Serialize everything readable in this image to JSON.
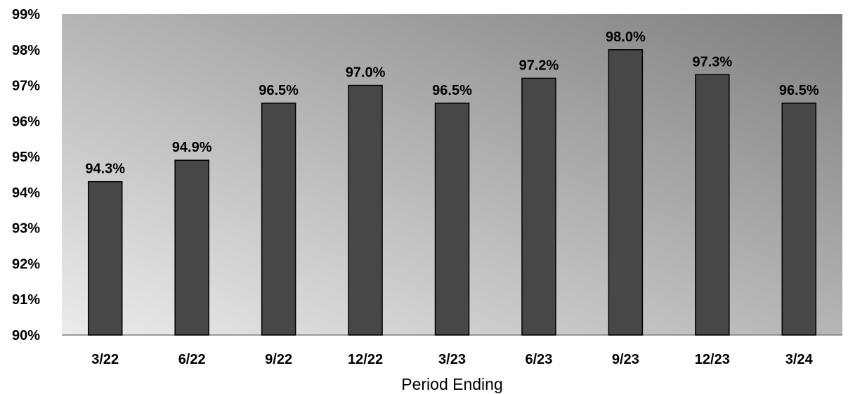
{
  "chart_data": {
    "type": "bar",
    "title": "",
    "xlabel": "Period Ending",
    "ylabel": "",
    "categories": [
      "3/22",
      "6/22",
      "9/22",
      "12/22",
      "3/23",
      "6/23",
      "9/23",
      "12/23",
      "3/24"
    ],
    "values": [
      94.3,
      94.9,
      96.5,
      97.0,
      96.5,
      97.2,
      98.0,
      97.3,
      96.5
    ],
    "data_labels": [
      "94.3%",
      "94.9%",
      "96.5%",
      "97.0%",
      "96.5%",
      "97.2%",
      "98.0%",
      "97.3%",
      "96.5%"
    ],
    "ylim": [
      90,
      99
    ],
    "y_ticks": [
      90,
      91,
      92,
      93,
      94,
      95,
      96,
      97,
      98,
      99
    ],
    "y_tick_labels": [
      "90%",
      "91%",
      "92%",
      "93%",
      "94%",
      "95%",
      "96%",
      "97%",
      "98%",
      "99%"
    ],
    "grid": false,
    "legend": "none",
    "colors": {
      "bar_fill": "#474747",
      "bar_stroke": "#000000",
      "plot_gradient_light": "#ececec",
      "plot_gradient_dark": "#7e7e7e"
    }
  }
}
